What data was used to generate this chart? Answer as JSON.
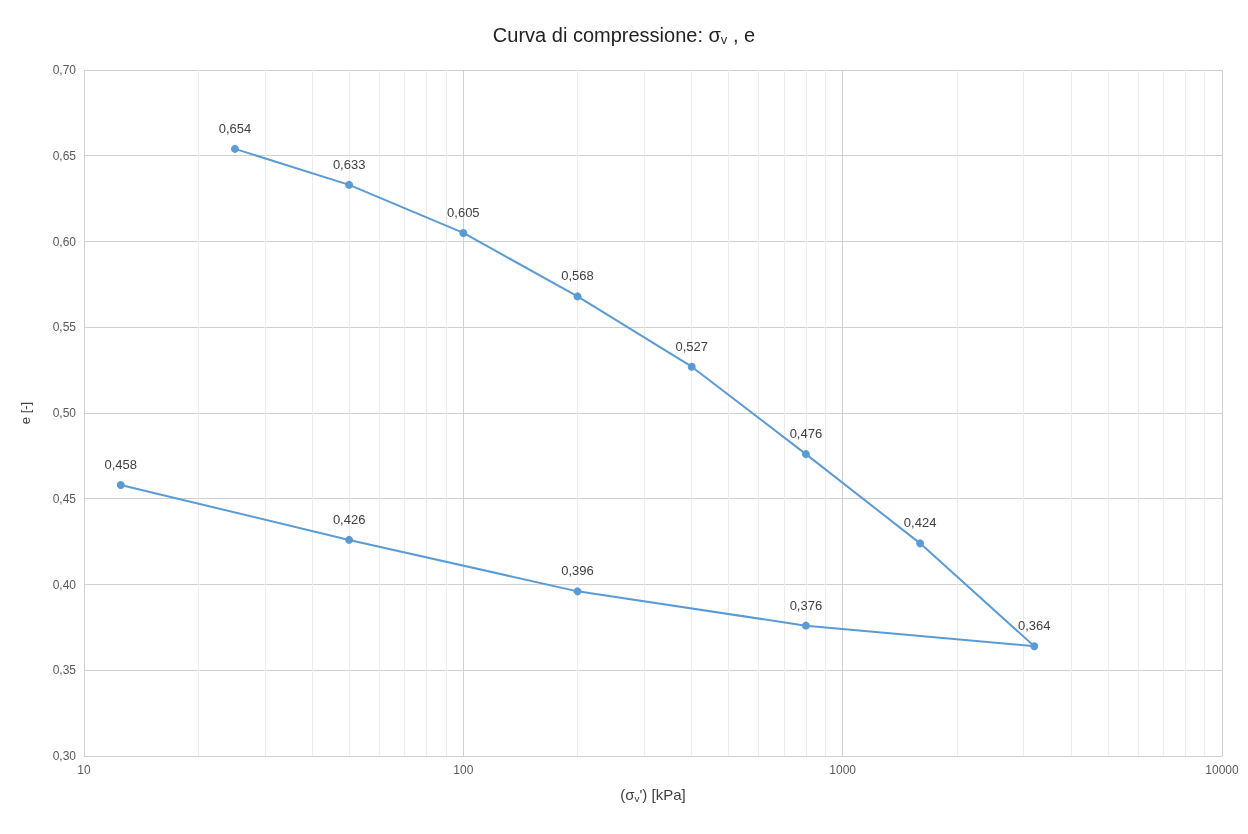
{
  "chart_data": {
    "type": "line",
    "title": "Curva di compressione: σ$_{v}$ , e",
    "xlabel": "(σ$_{v}$') [kPa]",
    "ylabel": "e [-]",
    "x": [
      25,
      50,
      100,
      200,
      400,
      800,
      1600,
      3200,
      800,
      200,
      50,
      12.5
    ],
    "series": [
      {
        "color": "#5b9bd5",
        "values": [
          0.654,
          0.633,
          0.605,
          0.568,
          0.527,
          0.476,
          0.424,
          0.364,
          0.376,
          0.396,
          0.426,
          0.458
        ],
        "value_labels": [
          "0,654",
          "0,633",
          "0,605",
          "0,568",
          "0,527",
          "0,476",
          "0,424",
          "0,364",
          "0,376",
          "0,396",
          "0,426",
          "0,458"
        ]
      }
    ],
    "log": "x",
    "xlim": [
      10,
      10000
    ],
    "xticks": [
      10,
      100,
      1000,
      10000
    ],
    "ylim": [
      0.3,
      0.7
    ],
    "yticks": [
      {
        "value": 0.3,
        "label": "0,30"
      },
      {
        "value": 0.35,
        "label": "0,35"
      },
      {
        "value": 0.4,
        "label": "0,40"
      },
      {
        "value": 0.45,
        "label": "0,45"
      },
      {
        "value": 0.5,
        "label": "0,50"
      },
      {
        "value": 0.55,
        "label": "0,55"
      },
      {
        "value": 0.6,
        "label": "0,60"
      },
      {
        "value": 0.65,
        "label": "0,65"
      },
      {
        "value": 0.7,
        "label": "0,70"
      }
    ],
    "grid": true,
    "marker": "circle",
    "line_style": "solid"
  }
}
